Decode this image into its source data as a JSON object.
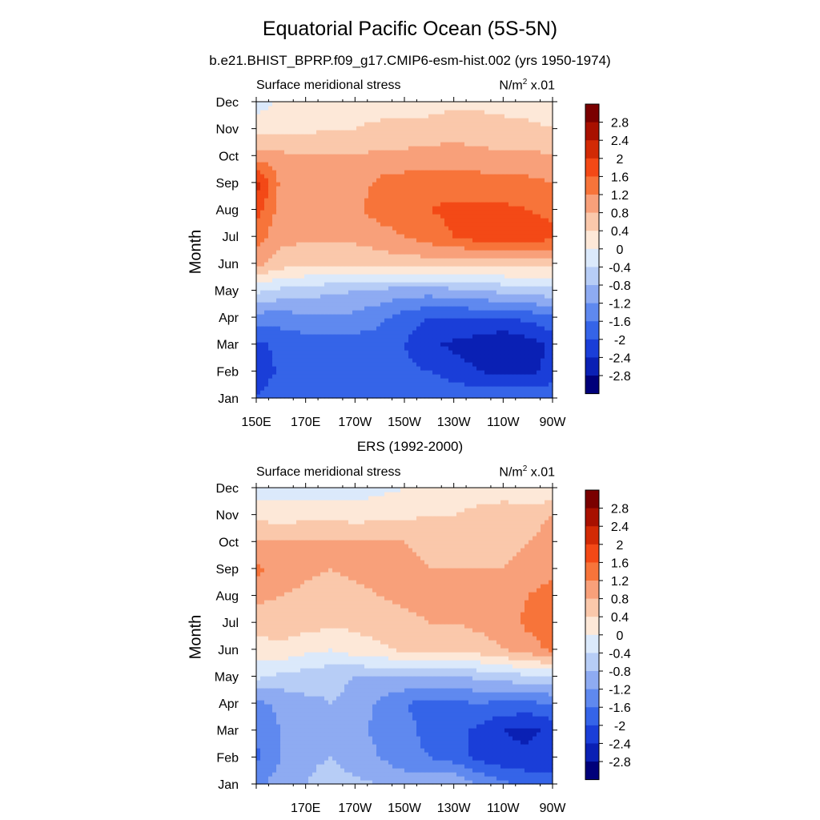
{
  "title": "Equatorial Pacific Ocean (5S-5N)",
  "subtitle": "b.e21.BHIST_BPRP.f09_g17.CMIP6-esm-hist.002 (yrs 1950-1974)",
  "panels": [
    {
      "panel_title": "",
      "left_string": "Surface meridional stress",
      "units_base": "N/m",
      "units_exp": "2",
      "units_scale": " x.01",
      "ylabel": "Month",
      "xticks": [
        "150E",
        "170E",
        "170W",
        "150W",
        "130W",
        "110W",
        "90W"
      ],
      "yticks": [
        "Jan",
        "Feb",
        "Mar",
        "Apr",
        "May",
        "Jun",
        "Jul",
        "Aug",
        "Sep",
        "Oct",
        "Nov",
        "Dec"
      ]
    },
    {
      "panel_title": "ERS (1992-2000)",
      "left_string": "Surface meridional stress",
      "units_base": "N/m",
      "units_exp": "2",
      "units_scale": " x.01",
      "ylabel": "Month",
      "xticks": [
        "",
        "170E",
        "170W",
        "150W",
        "130W",
        "110W",
        "90W"
      ],
      "yticks": [
        "Jan",
        "Feb",
        "Mar",
        "Apr",
        "May",
        "Jun",
        "Jul",
        "Aug",
        "Sep",
        "Oct",
        "Nov",
        "Dec"
      ]
    }
  ],
  "colorbar": {
    "labels": [
      "2.8",
      "2.4",
      "2",
      "1.6",
      "1.2",
      "0.8",
      "0.4",
      "0",
      "-0.4",
      "-0.8",
      "-1.2",
      "-1.6",
      "-2",
      "-2.4",
      "-2.8"
    ],
    "colors": [
      "#7a0000",
      "#a81000",
      "#d22a05",
      "#f34916",
      "#f7743a",
      "#f8a07a",
      "#fac8ab",
      "#fde8d8",
      "#dbe9fb",
      "#b7cdf6",
      "#8eabf2",
      "#5f89ef",
      "#3564e8",
      "#1a3ed8",
      "#0a20b4",
      "#00007a"
    ]
  },
  "chart_data": [
    {
      "type": "heatmap",
      "title": "Surface meridional stress",
      "units": "N/m2 x.01",
      "xlabel": "",
      "ylabel": "Month",
      "x": [
        150,
        160,
        170,
        180,
        190,
        200,
        210,
        220,
        230,
        240,
        250,
        260,
        270
      ],
      "x_tick_labels": [
        "150E",
        "170E",
        "170W",
        "150W",
        "130W",
        "110W",
        "90W"
      ],
      "y": [
        "Jan",
        "Feb",
        "Mar",
        "Apr",
        "May",
        "Jun",
        "Jul",
        "Aug",
        "Sep",
        "Oct",
        "Nov",
        "Dec"
      ],
      "values": [
        [
          -2.0,
          -1.7,
          -1.6,
          -1.6,
          -1.6,
          -1.6,
          -1.6,
          -1.6,
          -1.7,
          -1.7,
          -1.7,
          -1.7,
          -1.6
        ],
        [
          -2.3,
          -1.9,
          -1.8,
          -1.8,
          -1.8,
          -1.8,
          -1.9,
          -2.0,
          -2.2,
          -2.4,
          -2.5,
          -2.5,
          -2.3
        ],
        [
          -2.1,
          -1.9,
          -1.8,
          -1.8,
          -1.8,
          -1.8,
          -2.0,
          -2.3,
          -2.5,
          -2.6,
          -2.8,
          -2.6,
          -2.3
        ],
        [
          -1.4,
          -1.4,
          -1.3,
          -1.3,
          -1.3,
          -1.5,
          -1.8,
          -2.0,
          -2.0,
          -2.0,
          -2.0,
          -1.9,
          -1.7
        ],
        [
          -0.3,
          -0.5,
          -0.6,
          -0.7,
          -0.8,
          -0.9,
          -1.0,
          -1.0,
          -0.9,
          -0.8,
          -0.7,
          -0.6,
          -0.5
        ],
        [
          0.9,
          0.6,
          0.5,
          0.5,
          0.5,
          0.6,
          0.6,
          0.6,
          0.5,
          0.6,
          0.6,
          0.6,
          0.5
        ],
        [
          1.4,
          0.9,
          0.9,
          0.9,
          0.9,
          1.0,
          1.2,
          1.4,
          1.6,
          1.8,
          1.9,
          1.9,
          1.7
        ],
        [
          1.8,
          1.0,
          1.0,
          1.0,
          1.1,
          1.4,
          1.5,
          1.6,
          1.7,
          1.7,
          1.7,
          1.6,
          1.5
        ],
        [
          2.2,
          1.1,
          1.0,
          1.0,
          1.0,
          1.3,
          1.4,
          1.4,
          1.4,
          1.4,
          1.3,
          1.3,
          1.2
        ],
        [
          1.0,
          0.9,
          0.8,
          0.8,
          0.8,
          0.9,
          0.9,
          1.0,
          1.0,
          0.9,
          0.9,
          0.9,
          0.8
        ],
        [
          0.2,
          0.3,
          0.3,
          0.4,
          0.4,
          0.5,
          0.5,
          0.5,
          0.6,
          0.6,
          0.5,
          0.5,
          0.4
        ],
        [
          -0.2,
          0.1,
          0.1,
          0.2,
          0.2,
          0.2,
          0.2,
          0.3,
          0.3,
          0.3,
          0.3,
          0.2,
          0.2
        ]
      ],
      "levels": [
        -2.8,
        -2.4,
        -2.0,
        -1.6,
        -1.2,
        -0.8,
        -0.4,
        0.0,
        0.4,
        0.8,
        1.2,
        1.6,
        2.0,
        2.4,
        2.8
      ]
    },
    {
      "type": "heatmap",
      "title": "ERS (1992-2000)",
      "units": "N/m2 x.01",
      "xlabel": "",
      "ylabel": "Month",
      "x": [
        150,
        160,
        170,
        180,
        190,
        200,
        210,
        220,
        230,
        240,
        250,
        260,
        270
      ],
      "x_tick_labels": [
        "",
        "170E",
        "170W",
        "150W",
        "130W",
        "110W",
        "90W"
      ],
      "y": [
        "Jan",
        "Feb",
        "Mar",
        "Apr",
        "May",
        "Jun",
        "Jul",
        "Aug",
        "Sep",
        "Oct",
        "Nov",
        "Dec"
      ],
      "values": [
        [
          -1.3,
          -1.0,
          -0.8,
          -0.6,
          -0.7,
          -0.8,
          -0.9,
          -0.9,
          -0.8,
          -1.2,
          -1.5,
          -1.7,
          -1.9
        ],
        [
          -1.7,
          -1.2,
          -0.9,
          -0.8,
          -1.0,
          -1.2,
          -1.5,
          -1.6,
          -1.8,
          -2.1,
          -2.3,
          -2.3,
          -2.1
        ],
        [
          -1.5,
          -1.2,
          -1.1,
          -0.9,
          -1.1,
          -1.3,
          -1.5,
          -1.7,
          -1.8,
          -2.1,
          -2.4,
          -2.5,
          -2.3
        ],
        [
          -1.3,
          -1.1,
          -0.9,
          -0.8,
          -0.9,
          -1.3,
          -1.6,
          -1.7,
          -1.7,
          -1.6,
          -1.7,
          -1.7,
          -1.6
        ],
        [
          -0.3,
          -0.5,
          -0.6,
          -0.7,
          -0.8,
          -0.8,
          -0.8,
          -0.9,
          -0.9,
          -0.7,
          -0.6,
          -0.5,
          -0.4
        ],
        [
          0.2,
          0.3,
          0.1,
          0.0,
          0.2,
          0.3,
          0.5,
          0.6,
          0.5,
          0.6,
          0.8,
          1.0,
          1.3
        ],
        [
          0.6,
          0.6,
          0.6,
          0.5,
          0.5,
          0.6,
          0.7,
          0.8,
          0.8,
          0.9,
          1.0,
          1.3,
          1.4
        ],
        [
          0.9,
          0.8,
          0.7,
          0.6,
          0.7,
          0.8,
          0.9,
          0.9,
          0.9,
          0.9,
          0.9,
          1.2,
          1.4
        ],
        [
          1.3,
          1.0,
          0.9,
          0.8,
          0.9,
          0.9,
          0.9,
          0.8,
          0.8,
          0.8,
          0.8,
          0.9,
          1.1
        ],
        [
          0.8,
          0.8,
          0.8,
          0.8,
          0.9,
          0.8,
          0.8,
          0.7,
          0.6,
          0.6,
          0.7,
          0.8,
          1.0
        ],
        [
          0.3,
          0.2,
          0.3,
          0.3,
          0.2,
          0.3,
          0.3,
          0.4,
          0.4,
          0.5,
          0.6,
          0.6,
          0.8
        ],
        [
          -0.3,
          -0.2,
          -0.2,
          -0.3,
          -0.2,
          -0.1,
          0.0,
          0.1,
          0.2,
          0.2,
          0.2,
          0.1,
          0.0
        ]
      ],
      "levels": [
        -2.8,
        -2.4,
        -2.0,
        -1.6,
        -1.2,
        -0.8,
        -0.4,
        0.0,
        0.4,
        0.8,
        1.2,
        1.6,
        2.0,
        2.4,
        2.8
      ]
    }
  ]
}
